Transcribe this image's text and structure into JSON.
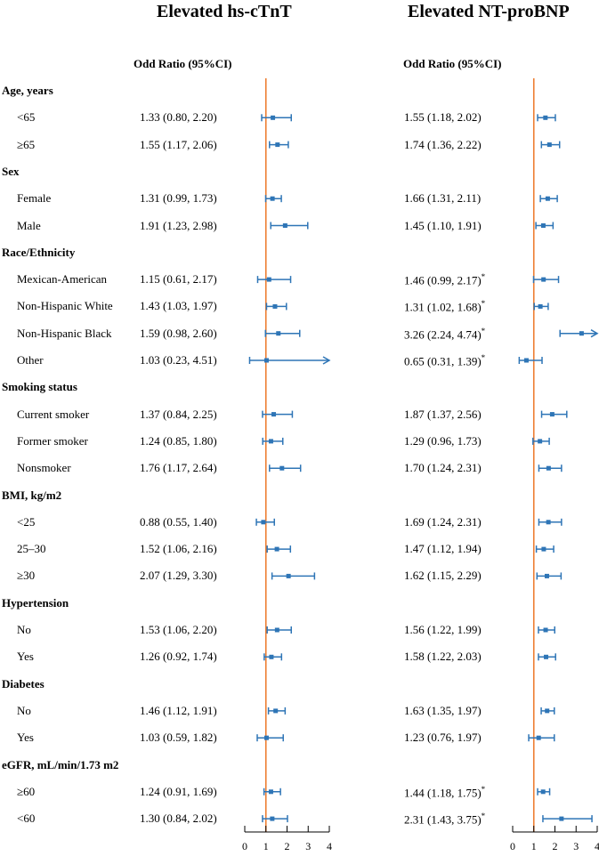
{
  "panels": [
    {
      "title": "Elevated hs-cTnT",
      "column_header": "Odd Ratio (95%CI)"
    },
    {
      "title": "Elevated NT-proBNP",
      "column_header": "Odd Ratio (95%CI)"
    }
  ],
  "colors": {
    "point": "#2e75b6",
    "reference_line": "#ed7d31",
    "axis": "#000000"
  },
  "chart_data": [
    {
      "type": "forest",
      "title": "Elevated hs-cTnT",
      "column_header": "Odd Ratio (95%CI)",
      "xlim": [
        0,
        4
      ],
      "xticks": [
        "0",
        "1",
        "2",
        "3",
        "4"
      ],
      "reference": 1,
      "groups": [
        {
          "label": "Age, years",
          "rows": [
            {
              "label": "<65",
              "text": "1.33 (0.80, 2.20)",
              "or": 1.33,
              "lo": 0.8,
              "hi": 2.2
            },
            {
              "label": "≥65",
              "text": "1.55 (1.17, 2.06)",
              "or": 1.55,
              "lo": 1.17,
              "hi": 2.06
            }
          ]
        },
        {
          "label": "Sex",
          "rows": [
            {
              "label": "Female",
              "text": "1.31 (0.99, 1.73)",
              "or": 1.31,
              "lo": 0.99,
              "hi": 1.73
            },
            {
              "label": "Male",
              "text": "1.91 (1.23, 2.98)",
              "or": 1.91,
              "lo": 1.23,
              "hi": 2.98
            }
          ]
        },
        {
          "label": "Race/Ethnicity",
          "rows": [
            {
              "label": "Mexican-American",
              "text": "1.15 (0.61, 2.17)",
              "or": 1.15,
              "lo": 0.61,
              "hi": 2.17
            },
            {
              "label": "Non-Hispanic White",
              "text": "1.43 (1.03, 1.97)",
              "or": 1.43,
              "lo": 1.03,
              "hi": 1.97
            },
            {
              "label": "Non-Hispanic Black",
              "text": "1.59 (0.98, 2.60)",
              "or": 1.59,
              "lo": 0.98,
              "hi": 2.6
            },
            {
              "label": "Other",
              "text": "1.03 (0.23, 4.51)",
              "or": 1.03,
              "lo": 0.23,
              "hi": 4.51
            }
          ]
        },
        {
          "label": "Smoking status",
          "rows": [
            {
              "label": "Current smoker",
              "text": "1.37 (0.84, 2.25)",
              "or": 1.37,
              "lo": 0.84,
              "hi": 2.25
            },
            {
              "label": "Former smoker",
              "text": "1.24 (0.85, 1.80)",
              "or": 1.24,
              "lo": 0.85,
              "hi": 1.8
            },
            {
              "label": "Nonsmoker",
              "text": "1.76 (1.17, 2.64)",
              "or": 1.76,
              "lo": 1.17,
              "hi": 2.64
            }
          ]
        },
        {
          "label": "BMI, kg/m2",
          "rows": [
            {
              "label": "<25",
              "text": "0.88 (0.55, 1.40)",
              "or": 0.88,
              "lo": 0.55,
              "hi": 1.4
            },
            {
              "label": "25–30",
              "text": "1.52 (1.06, 2.16)",
              "or": 1.52,
              "lo": 1.06,
              "hi": 2.16
            },
            {
              "label": "≥30",
              "text": "2.07 (1.29, 3.30)",
              "or": 2.07,
              "lo": 1.29,
              "hi": 3.3
            }
          ]
        },
        {
          "label": "Hypertension",
          "rows": [
            {
              "label": "No",
              "text": "1.53 (1.06, 2.20)",
              "or": 1.53,
              "lo": 1.06,
              "hi": 2.2
            },
            {
              "label": "Yes",
              "text": "1.26 (0.92, 1.74)",
              "or": 1.26,
              "lo": 0.92,
              "hi": 1.74
            }
          ]
        },
        {
          "label": "Diabetes",
          "rows": [
            {
              "label": "No",
              "text": "1.46 (1.12, 1.91)",
              "or": 1.46,
              "lo": 1.12,
              "hi": 1.91
            },
            {
              "label": "Yes",
              "text": "1.03 (0.59, 1.82)",
              "or": 1.03,
              "lo": 0.59,
              "hi": 1.82
            }
          ]
        },
        {
          "label": "eGFR, mL/min/1.73 m2",
          "rows": [
            {
              "label": "≥60",
              "text": "1.24 (0.91, 1.69)",
              "or": 1.24,
              "lo": 0.91,
              "hi": 1.69
            },
            {
              "label": "<60",
              "text": "1.30 (0.84, 2.02)",
              "or": 1.3,
              "lo": 0.84,
              "hi": 2.02
            }
          ]
        }
      ]
    },
    {
      "type": "forest",
      "title": "Elevated NT-proBNP",
      "column_header": "Odd Ratio (95%CI)",
      "xlim": [
        0,
        4
      ],
      "xticks": [
        "0",
        "1",
        "2",
        "3",
        "4"
      ],
      "reference": 1,
      "groups": [
        {
          "label": "Age, years",
          "rows": [
            {
              "label": "<65",
              "text": "1.55 (1.18, 2.02)",
              "or": 1.55,
              "lo": 1.18,
              "hi": 2.02
            },
            {
              "label": "≥65",
              "text": "1.74 (1.36, 2.22)",
              "or": 1.74,
              "lo": 1.36,
              "hi": 2.22
            }
          ]
        },
        {
          "label": "Sex",
          "rows": [
            {
              "label": "Female",
              "text": "1.66 (1.31, 2.11)",
              "or": 1.66,
              "lo": 1.31,
              "hi": 2.11
            },
            {
              "label": "Male",
              "text": "1.45 (1.10, 1.91)",
              "or": 1.45,
              "lo": 1.1,
              "hi": 1.91
            }
          ]
        },
        {
          "label": "Race/Ethnicity",
          "rows": [
            {
              "label": "Mexican-American",
              "text": "1.46 (0.99, 2.17)",
              "star": "*",
              "or": 1.46,
              "lo": 0.99,
              "hi": 2.17
            },
            {
              "label": "Non-Hispanic White",
              "text": "1.31 (1.02, 1.68)",
              "star": "*",
              "or": 1.31,
              "lo": 1.02,
              "hi": 1.68
            },
            {
              "label": "Non-Hispanic Black",
              "text": "3.26 (2.24, 4.74)",
              "star": "*",
              "or": 3.26,
              "lo": 2.24,
              "hi": 4.74
            },
            {
              "label": "Other",
              "text": "0.65 (0.31, 1.39)",
              "star": "*",
              "or": 0.65,
              "lo": 0.31,
              "hi": 1.39
            }
          ]
        },
        {
          "label": "Smoking status",
          "rows": [
            {
              "label": "Current smoker",
              "text": "1.87 (1.37, 2.56)",
              "or": 1.87,
              "lo": 1.37,
              "hi": 2.56
            },
            {
              "label": "Former smoker",
              "text": "1.29 (0.96, 1.73)",
              "or": 1.29,
              "lo": 0.96,
              "hi": 1.73
            },
            {
              "label": "Nonsmoker",
              "text": "1.70 (1.24, 2.31)",
              "or": 1.7,
              "lo": 1.24,
              "hi": 2.31
            }
          ]
        },
        {
          "label": "BMI, kg/m2",
          "rows": [
            {
              "label": "<25",
              "text": "1.69 (1.24, 2.31)",
              "or": 1.69,
              "lo": 1.24,
              "hi": 2.31
            },
            {
              "label": "25–30",
              "text": "1.47 (1.12, 1.94)",
              "or": 1.47,
              "lo": 1.12,
              "hi": 1.94
            },
            {
              "label": "≥30",
              "text": "1.62 (1.15, 2.29)",
              "or": 1.62,
              "lo": 1.15,
              "hi": 2.29
            }
          ]
        },
        {
          "label": "Hypertension",
          "rows": [
            {
              "label": "No",
              "text": "1.56 (1.22, 1.99)",
              "or": 1.56,
              "lo": 1.22,
              "hi": 1.99
            },
            {
              "label": "Yes",
              "text": "1.58 (1.22, 2.03)",
              "or": 1.58,
              "lo": 1.22,
              "hi": 2.03
            }
          ]
        },
        {
          "label": "Diabetes",
          "rows": [
            {
              "label": "No",
              "text": "1.63 (1.35, 1.97)",
              "or": 1.63,
              "lo": 1.35,
              "hi": 1.97
            },
            {
              "label": "Yes",
              "text": "1.23 (0.76, 1.97)",
              "or": 1.23,
              "lo": 0.76,
              "hi": 1.97
            }
          ]
        },
        {
          "label": "eGFR, mL/min/1.73 m2",
          "rows": [
            {
              "label": "≥60",
              "text": "1.44 (1.18, 1.75)",
              "star": "*",
              "or": 1.44,
              "lo": 1.18,
              "hi": 1.75
            },
            {
              "label": "<60",
              "text": "2.31 (1.43, 3.75)",
              "star": "*",
              "or": 2.31,
              "lo": 1.43,
              "hi": 3.75
            }
          ]
        }
      ]
    }
  ]
}
